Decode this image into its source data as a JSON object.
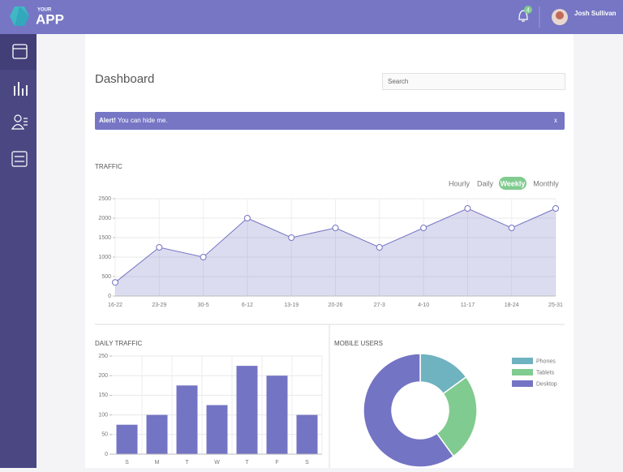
{
  "header": {
    "logo_small": "YOUR",
    "logo_large": "APP",
    "notifications": 4,
    "user_name": "Josh Sullivan"
  },
  "page": {
    "title": "Dashboard",
    "search_placeholder": "Search"
  },
  "alert": {
    "strong": "Alert!",
    "text": "You can hide me.",
    "close": "x"
  },
  "chart_data": [
    {
      "type": "line",
      "title": "TRAFFIC",
      "range_options": [
        "Hourly",
        "Daily",
        "Weekly",
        "Monthly"
      ],
      "active_range": "Weekly",
      "categories": [
        "16-22",
        "23-29",
        "30-5",
        "6-12",
        "13-19",
        "20-26",
        "27-3",
        "4-10",
        "11-17",
        "18-24",
        "25-31"
      ],
      "values": [
        350,
        1250,
        1000,
        2000,
        1500,
        1750,
        1250,
        1750,
        2250,
        1750,
        2250
      ],
      "color": "#7474c4",
      "ylim": [
        0,
        2500
      ],
      "yticks": [
        0,
        500,
        1000,
        1500,
        2000,
        2500
      ],
      "grid": true
    },
    {
      "type": "bar",
      "title": "DAILY TRAFFIC",
      "categories": [
        "S",
        "M",
        "T",
        "W",
        "T",
        "F",
        "S"
      ],
      "values": [
        75,
        100,
        175,
        125,
        225,
        200,
        100
      ],
      "color": "#7474c4",
      "ylim": [
        0,
        250
      ],
      "yticks": [
        0,
        50,
        100,
        150,
        200,
        250
      ],
      "grid": true
    },
    {
      "type": "pie",
      "title": "MOBILE USERS",
      "donut": true,
      "categories": [
        "Phones",
        "Tablets",
        "Desktop"
      ],
      "values": [
        15,
        25,
        60
      ],
      "colors": [
        "#6fb2c0",
        "#80cb8f",
        "#7474c4"
      ]
    }
  ]
}
